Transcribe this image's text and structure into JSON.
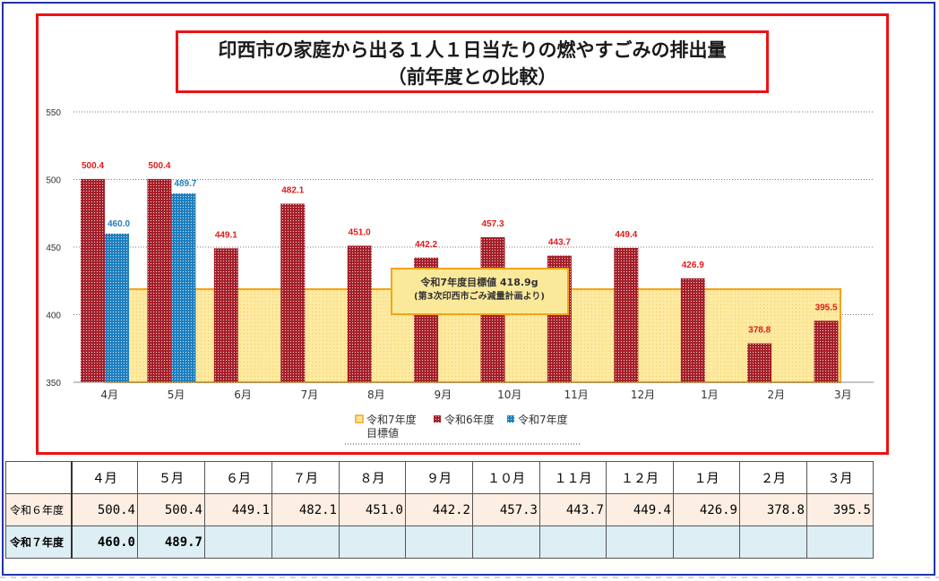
{
  "title_line1": "印西市の家庭から出る１人１日当たりの燃やすごみの排出量",
  "title_line2": "（前年度との比較）",
  "chart_data": {
    "type": "bar",
    "categories": [
      "4月",
      "5月",
      "6月",
      "7月",
      "8月",
      "9月",
      "10月",
      "11月",
      "12月",
      "1月",
      "2月",
      "3月"
    ],
    "series": [
      {
        "name": "令和6年度",
        "color": "#a3202a",
        "values": [
          500.4,
          500.4,
          449.1,
          482.1,
          451.0,
          442.2,
          457.3,
          443.7,
          449.4,
          426.9,
          378.8,
          395.5
        ]
      },
      {
        "name": "令和7年度",
        "color": "#1f7fbf",
        "values": [
          460.0,
          489.7,
          null,
          null,
          null,
          null,
          null,
          null,
          null,
          null,
          null,
          null
        ]
      }
    ],
    "target": {
      "name": "令和7年度目標値",
      "value": 418.9,
      "color": "#f5a31a",
      "fill": "#fdeaa0"
    },
    "target_annotation_line1": "令和7年度目標値 418.9g",
    "target_annotation_line2": "(第3次印西市ごみ減量計画より)",
    "yticks": [
      350,
      400,
      450,
      500,
      550
    ],
    "ylim": [
      350,
      550
    ],
    "legend": {
      "placement": "bottom-center",
      "items": [
        "令和7年度\n目標値",
        "令和6年度",
        "令和7年度"
      ]
    }
  },
  "table": {
    "headers": [
      "４月",
      "５月",
      "６月",
      "７月",
      "８月",
      "９月",
      "１０月",
      "１１月",
      "１２月",
      "１月",
      "２月",
      "３月"
    ],
    "rows": [
      {
        "label": "令和６年度",
        "values": [
          "500.4",
          "500.4",
          "449.1",
          "482.1",
          "451.0",
          "442.2",
          "457.3",
          "443.7",
          "449.4",
          "426.9",
          "378.8",
          "395.5"
        ]
      },
      {
        "label": "令和７年度",
        "values": [
          "460.0",
          "489.7",
          "",
          "",
          "",
          "",
          "",
          "",
          "",
          "",
          "",
          ""
        ]
      }
    ]
  }
}
